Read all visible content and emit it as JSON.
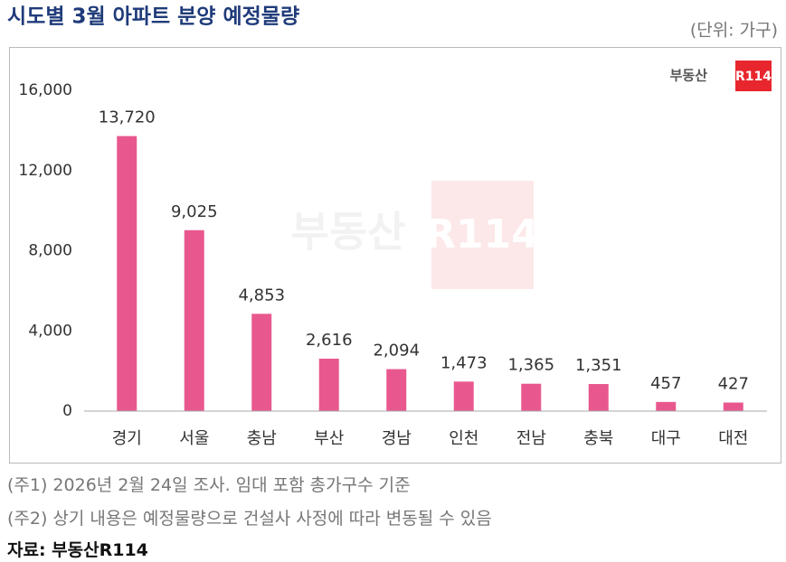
{
  "chart_data": {
    "type": "bar",
    "title": "시도별 3월 아파트 분양 예정물량",
    "unit": "(단위: 가구)",
    "logo": {
      "name": "부동산",
      "mark": "R114"
    },
    "categories": [
      "경기",
      "서울",
      "충남",
      "부산",
      "경남",
      "인천",
      "전남",
      "충북",
      "대구",
      "대전"
    ],
    "values": [
      13720,
      9025,
      4853,
      2616,
      2094,
      1473,
      1365,
      1351,
      457,
      427
    ],
    "value_labels": [
      "13,720",
      "9,025",
      "4,853",
      "2,616",
      "2,094",
      "1,473",
      "1,365",
      "1,351",
      "457",
      "427"
    ],
    "color": "#e8588f",
    "ylim": [
      0,
      16000
    ],
    "yticks": [
      0,
      {
        "value": 4000,
        "label": "4,000"
      },
      {
        "value": 8000,
        "label": "8,000"
      },
      {
        "value": 12000,
        "label": "12,000"
      },
      {
        "value": 16000,
        "label": "16,000"
      }
    ],
    "grid": false
  },
  "notes": [
    "(주1) 2026년 2월 24일 조사. 임대 포함 총가구수 기준",
    "(주2) 상기 내용은 예정물량으로 건설사 사정에 따라 변동될 수 있음"
  ],
  "source": "자료: 부동산R114"
}
